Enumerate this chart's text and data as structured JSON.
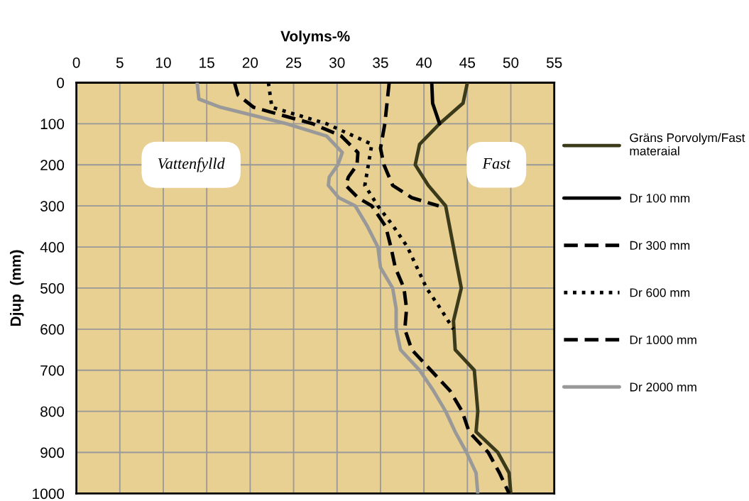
{
  "chart_data": {
    "type": "line",
    "xlabel": "Volyms-%",
    "ylabel": "Djup  (mm)",
    "xlim": [
      0,
      55
    ],
    "xticks": [
      0,
      5,
      10,
      15,
      20,
      25,
      30,
      35,
      40,
      45,
      50,
      55
    ],
    "ylim": [
      1000,
      0
    ],
    "yticks": [
      0,
      100,
      200,
      300,
      400,
      500,
      600,
      700,
      800,
      900,
      1000
    ],
    "grid": true,
    "legend": "right",
    "marker": "none",
    "annotations": [
      "Vattenfylld",
      "Fast"
    ],
    "series": [
      {
        "name": "Gräns Porvolym/Fast materaial",
        "color": "#3b3a1a",
        "line_style": "solid",
        "x": [
          45,
          44.5,
          41.8,
          39.5,
          39,
          40.5,
          42.5,
          43.4,
          44.3,
          43.4,
          43.6,
          45.8,
          46.2,
          46,
          48.5,
          49.8,
          50
        ],
        "values": [
          0,
          50,
          100,
          150,
          200,
          250,
          300,
          400,
          500,
          580,
          650,
          700,
          800,
          850,
          900,
          950,
          1000
        ]
      },
      {
        "name": "Dr 100 mm",
        "color": "#000000",
        "line_style": "solid",
        "x": [
          40.9,
          41,
          41.8
        ],
        "values": [
          0,
          50,
          100
        ]
      },
      {
        "name": "Dr 300 mm",
        "color": "#000000",
        "line_style": "dashed",
        "x": [
          36,
          35.5,
          35,
          35.4,
          36.4,
          38.6,
          41.7
        ],
        "values": [
          0,
          100,
          160,
          200,
          250,
          280,
          300
        ]
      },
      {
        "name": "Dr 600 mm",
        "color": "#000000",
        "line_style": "dotted",
        "x": [
          22.1,
          22.5,
          28.8,
          34,
          33.6,
          33.2,
          34.7,
          36.5,
          38.1,
          39.2,
          40.3,
          41.9,
          43.4
        ],
        "values": [
          0,
          60,
          100,
          150,
          200,
          250,
          300,
          350,
          400,
          450,
          500,
          550,
          600
        ]
      },
      {
        "name": "Dr 1000 mm",
        "color": "#000000",
        "line_style": "dashed",
        "x": [
          18.2,
          18.6,
          20.4,
          27.2,
          30.5,
          32.4,
          32.3,
          31.3,
          31,
          32.4,
          34,
          35.6,
          36.2,
          36.7,
          37.7,
          38,
          37.8,
          38.6,
          40.8,
          43,
          44.4,
          45.2,
          47.4,
          48.7,
          49.8
        ],
        "values": [
          0,
          30,
          60,
          100,
          130,
          170,
          200,
          230,
          250,
          280,
          300,
          350,
          400,
          450,
          500,
          550,
          600,
          650,
          700,
          750,
          800,
          850,
          900,
          950,
          1000
        ]
      },
      {
        "name": "Dr 2000 mm",
        "color": "#999999",
        "line_style": "solid",
        "x": [
          13.9,
          14.1,
          16.6,
          24.2,
          28.8,
          30.6,
          30.1,
          29.1,
          29,
          30.2,
          32.1,
          33.5,
          34.7,
          35,
          36.4,
          36.8,
          36.8,
          37.3,
          39.5,
          41.1,
          42.5,
          43.6,
          44.9,
          46,
          46.2
        ],
        "values": [
          0,
          40,
          60,
          100,
          130,
          170,
          200,
          230,
          250,
          280,
          300,
          350,
          400,
          450,
          500,
          550,
          600,
          650,
          700,
          750,
          800,
          850,
          900,
          950,
          1000
        ]
      }
    ]
  }
}
